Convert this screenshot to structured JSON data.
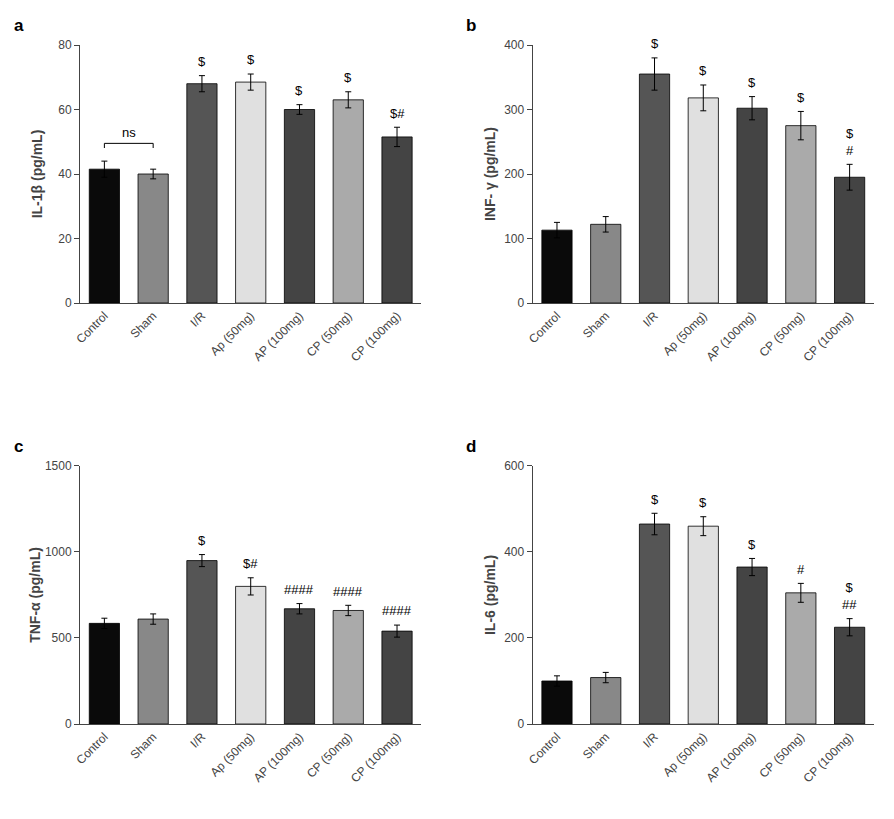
{
  "chart_data": [
    {
      "type": "bar",
      "title": "a",
      "ylabel": "IL-1β (pg/mL)",
      "categories": [
        "Control",
        "Sham",
        "I/R",
        "Ap (50mg)",
        "AP (100mg)",
        "CP (50mg)",
        "CP (100mg)"
      ],
      "values": [
        41.5,
        40.0,
        68.0,
        68.5,
        60.0,
        63.0,
        51.5
      ],
      "errors": [
        2.5,
        1.5,
        2.5,
        2.5,
        1.5,
        2.5,
        3.0
      ],
      "colors": [
        "#0a0a0a",
        "#888888",
        "#555555",
        "#e0e0e0",
        "#444444",
        "#aaaaaa",
        "#444444"
      ],
      "ylim": [
        0,
        80
      ],
      "yticks": [
        0,
        20,
        40,
        60,
        80
      ],
      "grid": false,
      "annotations": [
        {
          "category": "I/R",
          "text": "$"
        },
        {
          "category": "Ap (50mg)",
          "text": "$"
        },
        {
          "category": "AP (100mg)",
          "text": "$"
        },
        {
          "category": "CP (50mg)",
          "text": "$"
        },
        {
          "category": "CP (100mg)",
          "text": "$#"
        }
      ],
      "brackets": [
        {
          "from": "Control",
          "to": "Sham",
          "y": 49.5,
          "text": "ns"
        }
      ]
    },
    {
      "type": "bar",
      "title": "b",
      "ylabel": "INF- γ (pg/mL)",
      "categories": [
        "Control",
        "Sham",
        "I/R",
        "Ap (50mg)",
        "AP (100mg)",
        "CP (50mg)",
        "CP (100mg)"
      ],
      "values": [
        113.0,
        122.0,
        355.0,
        318.0,
        302.0,
        275.0,
        195.0
      ],
      "errors": [
        12.0,
        12.0,
        25.0,
        20.0,
        18.0,
        22.0,
        20.0
      ],
      "colors": [
        "#0a0a0a",
        "#888888",
        "#555555",
        "#e0e0e0",
        "#444444",
        "#aaaaaa",
        "#444444"
      ],
      "ylim": [
        0,
        400
      ],
      "yticks": [
        0,
        100,
        200,
        300,
        400
      ],
      "grid": false,
      "annotations": [
        {
          "category": "I/R",
          "text": "$"
        },
        {
          "category": "Ap (50mg)",
          "text": "$"
        },
        {
          "category": "AP (100mg)",
          "text": "$"
        },
        {
          "category": "CP (50mg)",
          "text": "$"
        },
        {
          "category": "CP (100mg)",
          "text": "$\n#"
        }
      ]
    },
    {
      "type": "bar",
      "title": "c",
      "ylabel": "TNF-α (pg/mL)",
      "categories": [
        "Control",
        "Sham",
        "I/R",
        "Ap (50mg)",
        "AP (100mg)",
        "CP (50mg)",
        "CP (100mg)"
      ],
      "values": [
        585.0,
        610.0,
        950.0,
        800.0,
        670.0,
        660.0,
        540.0
      ],
      "errors": [
        30.0,
        30.0,
        35.0,
        50.0,
        30.0,
        30.0,
        35.0
      ],
      "colors": [
        "#0a0a0a",
        "#888888",
        "#555555",
        "#e0e0e0",
        "#444444",
        "#aaaaaa",
        "#444444"
      ],
      "ylim": [
        0,
        1500
      ],
      "yticks": [
        0,
        500,
        1000,
        1500
      ],
      "grid": false,
      "annotations": [
        {
          "category": "I/R",
          "text": "$"
        },
        {
          "category": "Ap (50mg)",
          "text": "$#"
        },
        {
          "category": "AP (100mg)",
          "text": "####"
        },
        {
          "category": "CP (50mg)",
          "text": "####"
        },
        {
          "category": "CP (100mg)",
          "text": "####"
        }
      ]
    },
    {
      "type": "bar",
      "title": "d",
      "ylabel": "IL-6 (pg/mL)",
      "categories": [
        "Control",
        "Sham",
        "I/R",
        "Ap (50mg)",
        "AP (100mg)",
        "CP (50mg)",
        "CP (100mg)"
      ],
      "values": [
        100.0,
        108.0,
        465.0,
        460.0,
        365.0,
        305.0,
        225.0
      ],
      "errors": [
        12.0,
        12.0,
        25.0,
        22.0,
        20.0,
        22.0,
        20.0
      ],
      "colors": [
        "#0a0a0a",
        "#888888",
        "#555555",
        "#e0e0e0",
        "#444444",
        "#aaaaaa",
        "#444444"
      ],
      "ylim": [
        0,
        600
      ],
      "yticks": [
        0,
        200,
        400,
        600
      ],
      "grid": false,
      "annotations": [
        {
          "category": "I/R",
          "text": "$"
        },
        {
          "category": "Ap (50mg)",
          "text": "$"
        },
        {
          "category": "AP (100mg)",
          "text": "$"
        },
        {
          "category": "CP (50mg)",
          "text": "#"
        },
        {
          "category": "CP (100mg)",
          "text": "$\n##"
        }
      ]
    }
  ]
}
